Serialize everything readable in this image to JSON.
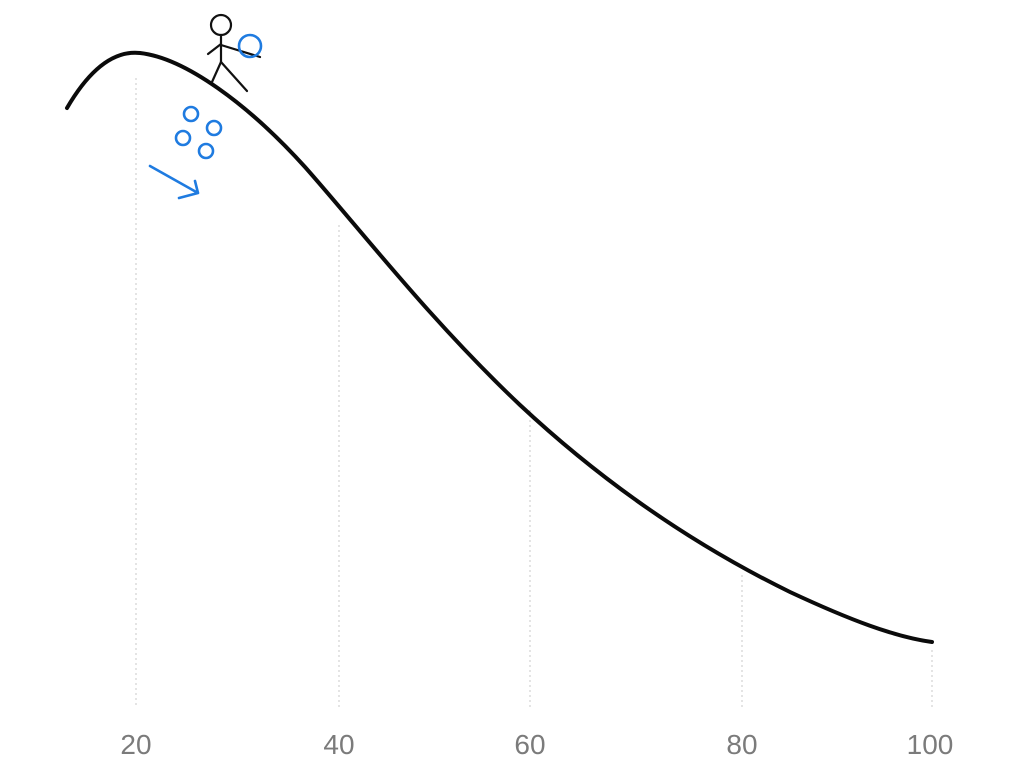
{
  "sketch": {
    "curve_color": "#0b0b0b",
    "accent_color": "#1f7be0",
    "grid_color": "#c8c8c8",
    "tick_color": "#7b7b7b"
  },
  "axis": {
    "ticks": [
      "20",
      "40",
      "60",
      "80",
      "100"
    ]
  },
  "icons": {
    "person": "stick-figure-icon",
    "held_ball": "ball-icon",
    "falling_balls": "falling-balls-icon",
    "direction": "down-right-arrow-icon"
  }
}
